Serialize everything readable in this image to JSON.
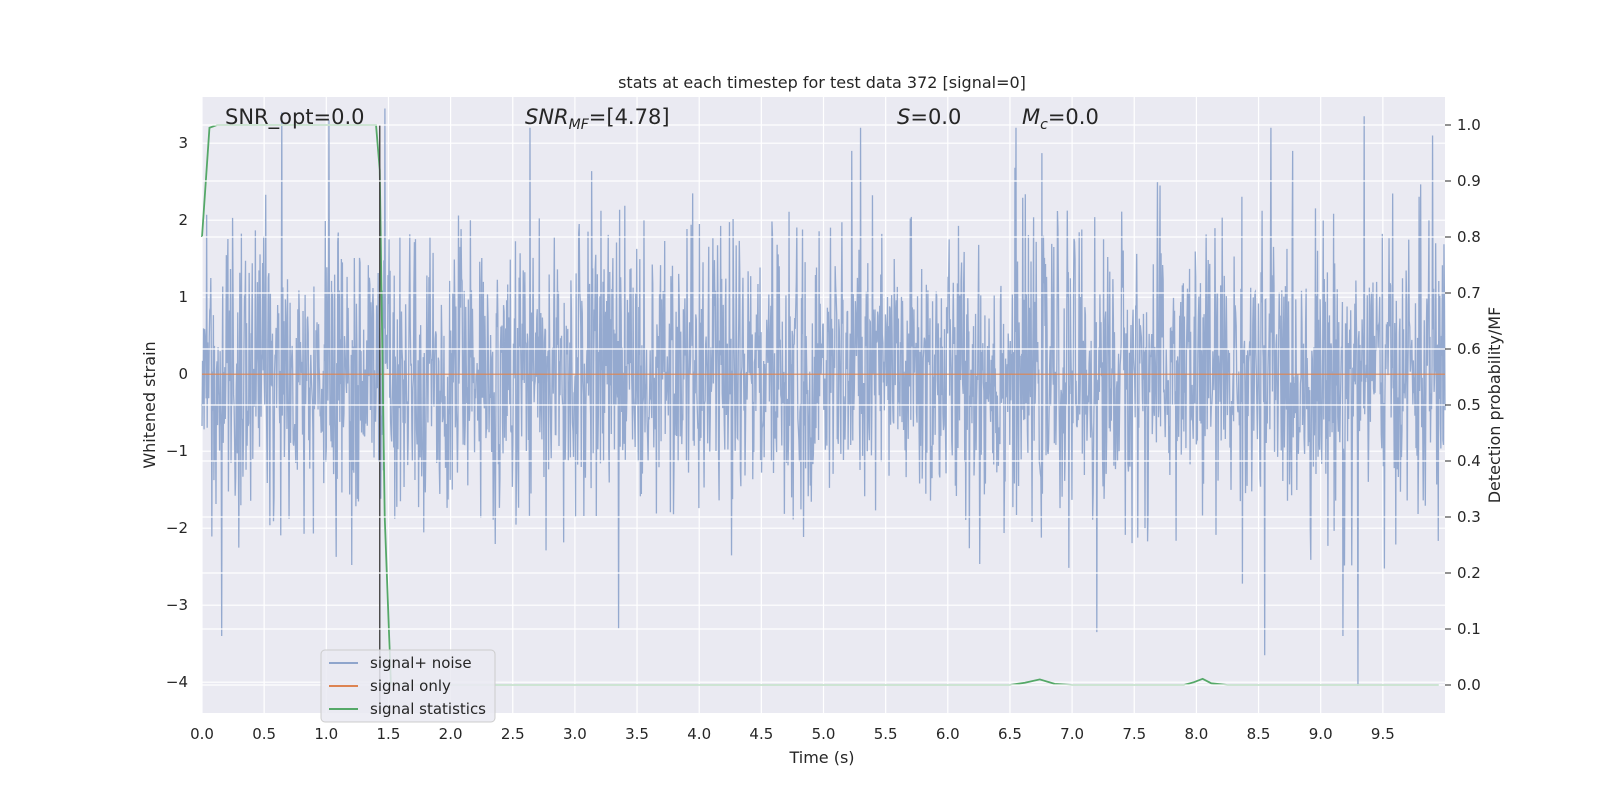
{
  "chart_data": {
    "type": "line",
    "title": "stats at each timestep for test data 372 [signal=0]",
    "xlabel": "Time (s)",
    "ylabel": "Whitened strain",
    "ylabel_right": "Detection probability/MF",
    "xlim": [
      0.0,
      10.0
    ],
    "ylim": [
      -4.4,
      3.6
    ],
    "ylim_right": [
      -0.05,
      1.05
    ],
    "xticks": [
      "0.0",
      "0.5",
      "1.0",
      "1.5",
      "2.0",
      "2.5",
      "3.0",
      "3.5",
      "4.0",
      "4.5",
      "5.0",
      "5.5",
      "6.0",
      "6.5",
      "7.0",
      "7.5",
      "8.0",
      "8.5",
      "9.0",
      "9.5"
    ],
    "yticks": [
      "−4",
      "−3",
      "−2",
      "−1",
      "0",
      "1",
      "2",
      "3"
    ],
    "yticks_right": [
      "0.0",
      "0.1",
      "0.2",
      "0.3",
      "0.4",
      "0.5",
      "0.6",
      "0.7",
      "0.8",
      "0.9",
      "1.0"
    ],
    "grid": true,
    "legend_position": "lower-left",
    "annotations": {
      "snr_opt": "SNR_opt=0.0",
      "snr_mf_base": "SNR",
      "snr_mf_sub": "MF",
      "snr_mf_rest": "=[4.78]",
      "s_base": "S",
      "s_rest": "=0.0",
      "mc_base": "M",
      "mc_sub": "c",
      "mc_rest": "=0.0"
    },
    "vertical_line_x": 1.43,
    "series": [
      {
        "name": "signal+ noise",
        "color": "#8fa5cc",
        "description_kind": "whitened noise",
        "approx_std": 0.9,
        "extreme_peaks": [
          {
            "x": 0.16,
            "y": -3.4
          },
          {
            "x": 0.64,
            "y": 3.4
          },
          {
            "x": 1.02,
            "y": 3.3
          },
          {
            "x": 1.47,
            "y": 3.45
          },
          {
            "x": 2.64,
            "y": 3.2
          },
          {
            "x": 3.35,
            "y": -3.3
          },
          {
            "x": 5.3,
            "y": 3.2
          },
          {
            "x": 6.55,
            "y": 3.2
          },
          {
            "x": 7.2,
            "y": -3.35
          },
          {
            "x": 8.55,
            "y": -3.65
          },
          {
            "x": 8.6,
            "y": 3.2
          },
          {
            "x": 9.18,
            "y": -3.4
          },
          {
            "x": 9.3,
            "y": -4.05
          },
          {
            "x": 9.35,
            "y": 3.35
          },
          {
            "x": 9.9,
            "y": 3.1
          }
        ]
      },
      {
        "name": "signal only",
        "color": "#dd8452",
        "x": [
          0.0,
          10.0
        ],
        "y": [
          0.0,
          0.0
        ]
      },
      {
        "name": "signal statistics",
        "color": "#55a868",
        "axis": "right",
        "x": [
          0.0,
          0.06,
          0.12,
          0.3,
          1.35,
          1.4,
          1.43,
          1.47,
          1.52,
          2.0,
          6.5,
          6.62,
          6.74,
          6.86,
          7.0,
          7.9,
          7.98,
          8.05,
          8.12,
          8.25,
          9.95
        ],
        "y": [
          0.8,
          0.995,
          1.0,
          1.0,
          1.0,
          1.0,
          0.92,
          0.3,
          0.0,
          0.0,
          0.0,
          0.004,
          0.01,
          0.002,
          0.0,
          0.0,
          0.005,
          0.011,
          0.003,
          0.0,
          0.0
        ]
      }
    ]
  }
}
